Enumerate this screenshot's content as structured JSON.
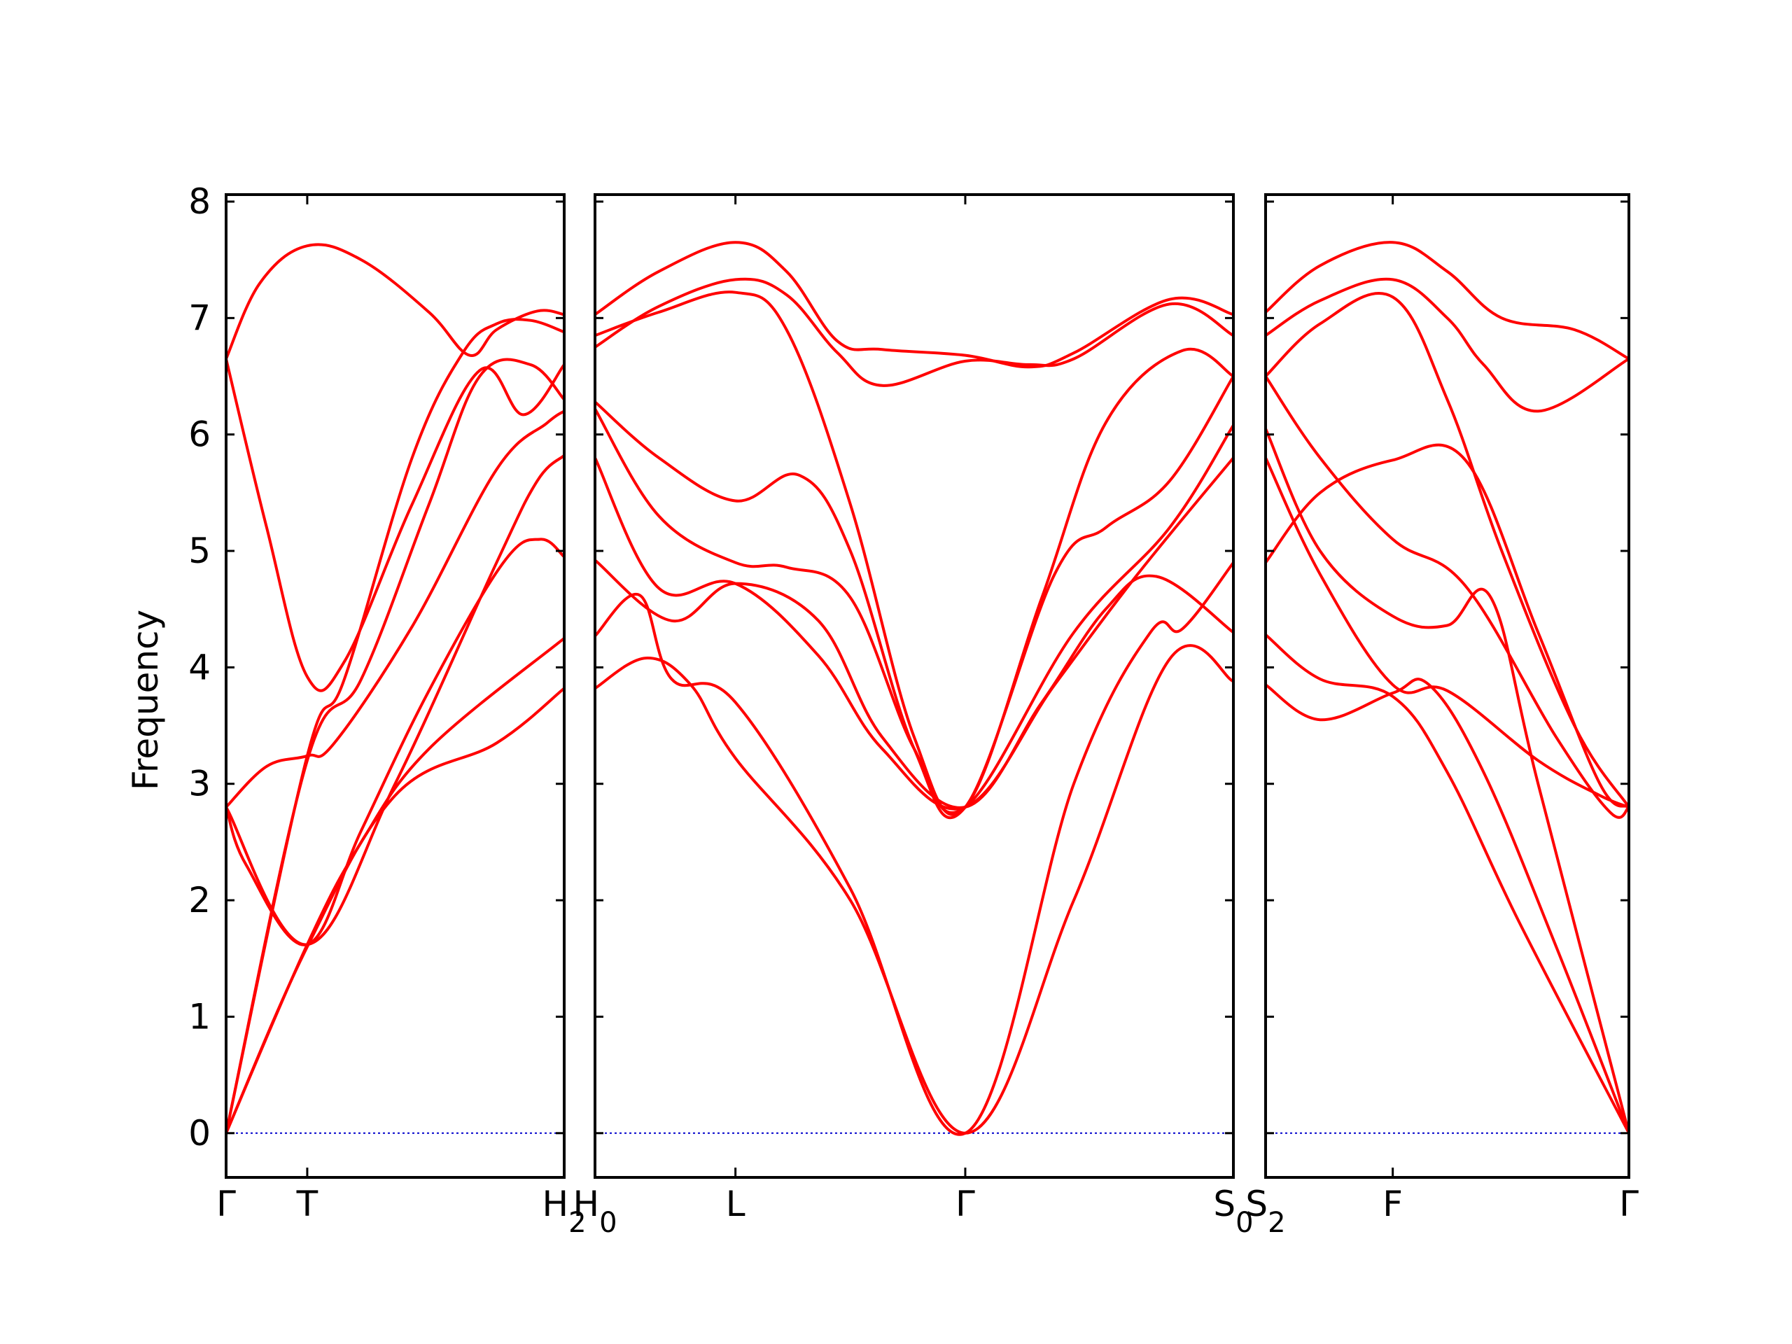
{
  "chart_data": {
    "type": "line",
    "ylabel": "Frequency",
    "ylim": [
      -0.38,
      8.06
    ],
    "yticks": [
      0,
      1,
      2,
      3,
      4,
      5,
      6,
      7,
      8
    ],
    "ytick_labels": [
      "0",
      "1",
      "2",
      "3",
      "4",
      "5",
      "6",
      "7",
      "8"
    ],
    "grid": false,
    "colors": {
      "bands": "#ff0000",
      "zero_line": "#0000cc",
      "axes": "#000000"
    },
    "panels": [
      {
        "name": "panel-gamma-t-h2",
        "xlim": [
          0,
          1
        ],
        "ticks": [
          {
            "x": 0,
            "label": "Γ",
            "sub": ""
          },
          {
            "x": 0.24,
            "label": "T",
            "sub": ""
          },
          {
            "x": 1,
            "label": "H",
            "sub": "2"
          }
        ],
        "bands": [
          {
            "x": [
              0,
              0.24,
              0.5,
              0.8,
              1
            ],
            "y": [
              0,
              1.6,
              2.9,
              3.35,
              3.82
            ]
          },
          {
            "x": [
              0,
              0.24,
              0.4,
              0.6,
              1
            ],
            "y": [
              0,
              1.62,
              2.5,
              3.3,
              4.25
            ]
          },
          {
            "x": [
              0,
              0.06,
              0.24,
              0.4,
              0.6,
              0.82,
              0.93,
              1
            ],
            "y": [
              2.8,
              2.3,
              1.62,
              2.6,
              3.8,
              4.9,
              5.1,
              4.95
            ]
          },
          {
            "x": [
              0,
              0.24,
              0.5,
              0.8,
              0.92,
              1
            ],
            "y": [
              2.8,
              1.62,
              3.0,
              4.9,
              5.6,
              5.82
            ]
          },
          {
            "x": [
              0,
              0.12,
              0.24,
              0.32,
              0.55,
              0.8,
              0.95,
              1
            ],
            "y": [
              2.8,
              3.15,
              3.24,
              3.35,
              4.35,
              5.7,
              6.1,
              6.2
            ]
          },
          {
            "x": [
              0,
              0.24,
              0.4,
              0.6,
              0.75,
              0.9,
              1
            ],
            "y": [
              0,
              3.2,
              3.9,
              5.4,
              6.5,
              6.6,
              6.3
            ]
          },
          {
            "x": [
              0,
              0.12,
              0.24,
              0.35,
              0.55,
              0.75,
              0.88,
              1
            ],
            "y": [
              6.65,
              5.2,
              3.92,
              4.05,
              5.4,
              6.55,
              6.17,
              6.6
            ]
          },
          {
            "x": [
              0,
              0.1,
              0.24,
              0.4,
              0.6,
              0.72,
              0.8,
              0.92,
              1
            ],
            "y": [
              6.65,
              7.3,
              7.62,
              7.5,
              7.05,
              6.68,
              6.9,
              7.06,
              7.03
            ]
          },
          {
            "x": [
              0,
              0.24,
              0.35,
              0.55,
              0.7,
              0.8,
              0.9,
              1
            ],
            "y": [
              0,
              3.24,
              3.9,
              5.8,
              6.7,
              6.95,
              6.98,
              6.88
            ]
          }
        ]
      },
      {
        "name": "panel-h0-l-gamma-s0",
        "xlim": [
          0,
          1
        ],
        "ticks": [
          {
            "x": 0,
            "label": "H",
            "sub": "0"
          },
          {
            "x": 0.22,
            "label": "L",
            "sub": ""
          },
          {
            "x": 0.58,
            "label": "Γ",
            "sub": ""
          },
          {
            "x": 1,
            "label": "S",
            "sub": "0"
          }
        ],
        "bands": [
          {
            "x": [
              0,
              0.08,
              0.15,
              0.22,
              0.4,
              0.58,
              0.75,
              0.9,
              1
            ],
            "y": [
              3.82,
              4.08,
              3.85,
              3.22,
              2.0,
              0,
              2.0,
              4.07,
              3.88
            ]
          },
          {
            "x": [
              0,
              0.07,
              0.12,
              0.22,
              0.4,
              0.58,
              0.75,
              0.87,
              0.92,
              1
            ],
            "y": [
              4.27,
              4.62,
              3.9,
              3.7,
              2.1,
              0,
              3.0,
              4.3,
              4.33,
              4.9
            ]
          },
          {
            "x": [
              0,
              0.12,
              0.22,
              0.35,
              0.45,
              0.58,
              0.7,
              0.8,
              0.88,
              1
            ],
            "y": [
              4.92,
              4.4,
              4.72,
              4.4,
              3.4,
              2.8,
              3.7,
              4.5,
              4.78,
              4.3
            ]
          },
          {
            "x": [
              0,
              0.1,
              0.22,
              0.35,
              0.45,
              0.58,
              0.72,
              0.85,
              1
            ],
            "y": [
              5.8,
              4.68,
              4.72,
              4.1,
              3.3,
              2.8,
              3.85,
              4.8,
              5.8
            ]
          },
          {
            "x": [
              0,
              0.1,
              0.22,
              0.3,
              0.4,
              0.5,
              0.58,
              0.75,
              0.9,
              1
            ],
            "y": [
              6.22,
              5.3,
              4.9,
              4.86,
              4.6,
              3.3,
              2.8,
              4.3,
              5.2,
              6.08
            ]
          },
          {
            "x": [
              0,
              0.1,
              0.22,
              0.32,
              0.4,
              0.5,
              0.58,
              0.72,
              0.8,
              0.9,
              1
            ],
            "y": [
              6.28,
              5.8,
              5.43,
              5.65,
              5.0,
              3.3,
              2.8,
              4.8,
              5.2,
              5.6,
              6.5
            ]
          },
          {
            "x": [
              0,
              0.1,
              0.22,
              0.3,
              0.4,
              0.5,
              0.58,
              0.7,
              0.8,
              0.92,
              1
            ],
            "y": [
              6.85,
              7.05,
              7.22,
              6.9,
              5.4,
              3.4,
              2.8,
              4.6,
              6.1,
              6.72,
              6.5
            ]
          },
          {
            "x": [
              0,
              0.1,
              0.22,
              0.3,
              0.38,
              0.45,
              0.58,
              0.68,
              0.75,
              0.9,
              1
            ],
            "y": [
              6.75,
              7.1,
              7.33,
              7.2,
              6.7,
              6.42,
              6.63,
              6.6,
              6.65,
              7.12,
              6.85
            ]
          },
          {
            "x": [
              0,
              0.1,
              0.22,
              0.3,
              0.38,
              0.45,
              0.58,
              0.68,
              0.75,
              0.9,
              1
            ],
            "y": [
              7.03,
              7.4,
              7.65,
              7.4,
              6.8,
              6.73,
              6.68,
              6.58,
              6.7,
              7.16,
              7.03
            ]
          }
        ]
      },
      {
        "name": "panel-s2-f-gamma",
        "xlim": [
          0,
          1
        ],
        "ticks": [
          {
            "x": 0,
            "label": "S",
            "sub": "2"
          },
          {
            "x": 0.35,
            "label": "F",
            "sub": ""
          },
          {
            "x": 1,
            "label": "Γ",
            "sub": ""
          }
        ],
        "bands": [
          {
            "x": [
              0,
              0.15,
              0.35,
              0.45,
              0.6,
              0.8,
              1
            ],
            "y": [
              3.85,
              3.55,
              3.78,
              3.85,
              3.1,
              1.6,
              0
            ]
          },
          {
            "x": [
              0,
              0.15,
              0.35,
              0.5,
              0.7,
              1
            ],
            "y": [
              4.28,
              3.9,
              3.75,
              3.1,
              1.8,
              0
            ]
          },
          {
            "x": [
              0,
              0.15,
              0.35,
              0.55,
              0.75,
              0.92,
              1
            ],
            "y": [
              4.9,
              5.5,
              5.78,
              5.78,
              4.3,
              3.0,
              2.8
            ]
          },
          {
            "x": [
              0,
              0.15,
              0.35,
              0.5,
              0.75,
              0.92,
              1
            ],
            "y": [
              5.8,
              4.8,
              3.85,
              3.8,
              3.2,
              2.9,
              2.8
            ]
          },
          {
            "x": [
              0,
              0.15,
              0.35,
              0.5,
              0.62,
              0.75,
              1
            ],
            "y": [
              6.05,
              5.0,
              4.44,
              4.36,
              4.6,
              3.0,
              0
            ]
          },
          {
            "x": [
              0,
              0.15,
              0.35,
              0.55,
              0.8,
              0.95,
              1
            ],
            "y": [
              6.5,
              5.8,
              5.1,
              4.7,
              3.4,
              2.75,
              2.8
            ]
          },
          {
            "x": [
              0,
              0.15,
              0.35,
              0.5,
              0.65,
              0.85,
              1
            ],
            "y": [
              6.5,
              6.95,
              7.18,
              6.3,
              5.0,
              3.5,
              2.8
            ]
          },
          {
            "x": [
              0,
              0.15,
              0.35,
              0.5,
              0.6,
              0.75,
              1
            ],
            "y": [
              6.85,
              7.15,
              7.33,
              7.0,
              6.6,
              6.2,
              6.65
            ]
          },
          {
            "x": [
              0,
              0.15,
              0.35,
              0.5,
              0.65,
              0.85,
              1
            ],
            "y": [
              7.05,
              7.45,
              7.65,
              7.4,
              7.0,
              6.9,
              6.65
            ]
          }
        ]
      }
    ]
  }
}
